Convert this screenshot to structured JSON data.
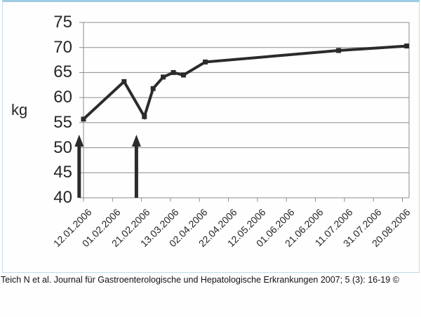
{
  "citation": "Teich N et al. Journal für Gastroenterologische und Hepatologische Erkrankungen 2007; 5 (3): 16-19 ©",
  "frame": {
    "top_border_color": "#9ecde2",
    "side_border_color": "#c3dfec"
  },
  "chart_data": {
    "type": "line",
    "title": "",
    "ylabel": "kg",
    "xlabel": "",
    "grid": true,
    "legend": false,
    "y_axis": {
      "min": 40,
      "max": 75,
      "step": 5,
      "tick_labels": [
        "75",
        "70",
        "65",
        "60",
        "55",
        "50",
        "45",
        "40"
      ]
    },
    "x_axis": {
      "tick_labels": [
        "12.01.2006",
        "01.02.2006",
        "21.02.2006",
        "13.03.2006",
        "02.04.2006",
        "22.04.2006",
        "12.05.2006",
        "01.06.2006",
        "21.06.2006",
        "11.07.2006",
        "31.07.2006",
        "20.08.2006"
      ],
      "interval_days": 20,
      "span_days": 220
    },
    "series": [
      {
        "name": "kg",
        "points": [
          {
            "day": 0,
            "kg": 55.7
          },
          {
            "day": 28,
            "kg": 63.2
          },
          {
            "day": 42,
            "kg": 56.2
          },
          {
            "day": 48,
            "kg": 61.8
          },
          {
            "day": 55,
            "kg": 64.1
          },
          {
            "day": 62,
            "kg": 65.0
          },
          {
            "day": 69,
            "kg": 64.5
          },
          {
            "day": 84,
            "kg": 67.1
          },
          {
            "day": 176,
            "kg": 69.4
          },
          {
            "day": 223,
            "kg": 70.3
          }
        ]
      }
    ],
    "annotations": {
      "arrows_up": [
        {
          "day": -3
        },
        {
          "day": 36.5
        }
      ],
      "arrow_base_kg": 40,
      "arrow_tip_kg": 52.6
    },
    "colors": {
      "line": "#2b2b2b",
      "marker": "#2b2b2b",
      "grid": "#8c8c8c",
      "axis": "#8c8c8c",
      "text": "#262626"
    }
  }
}
